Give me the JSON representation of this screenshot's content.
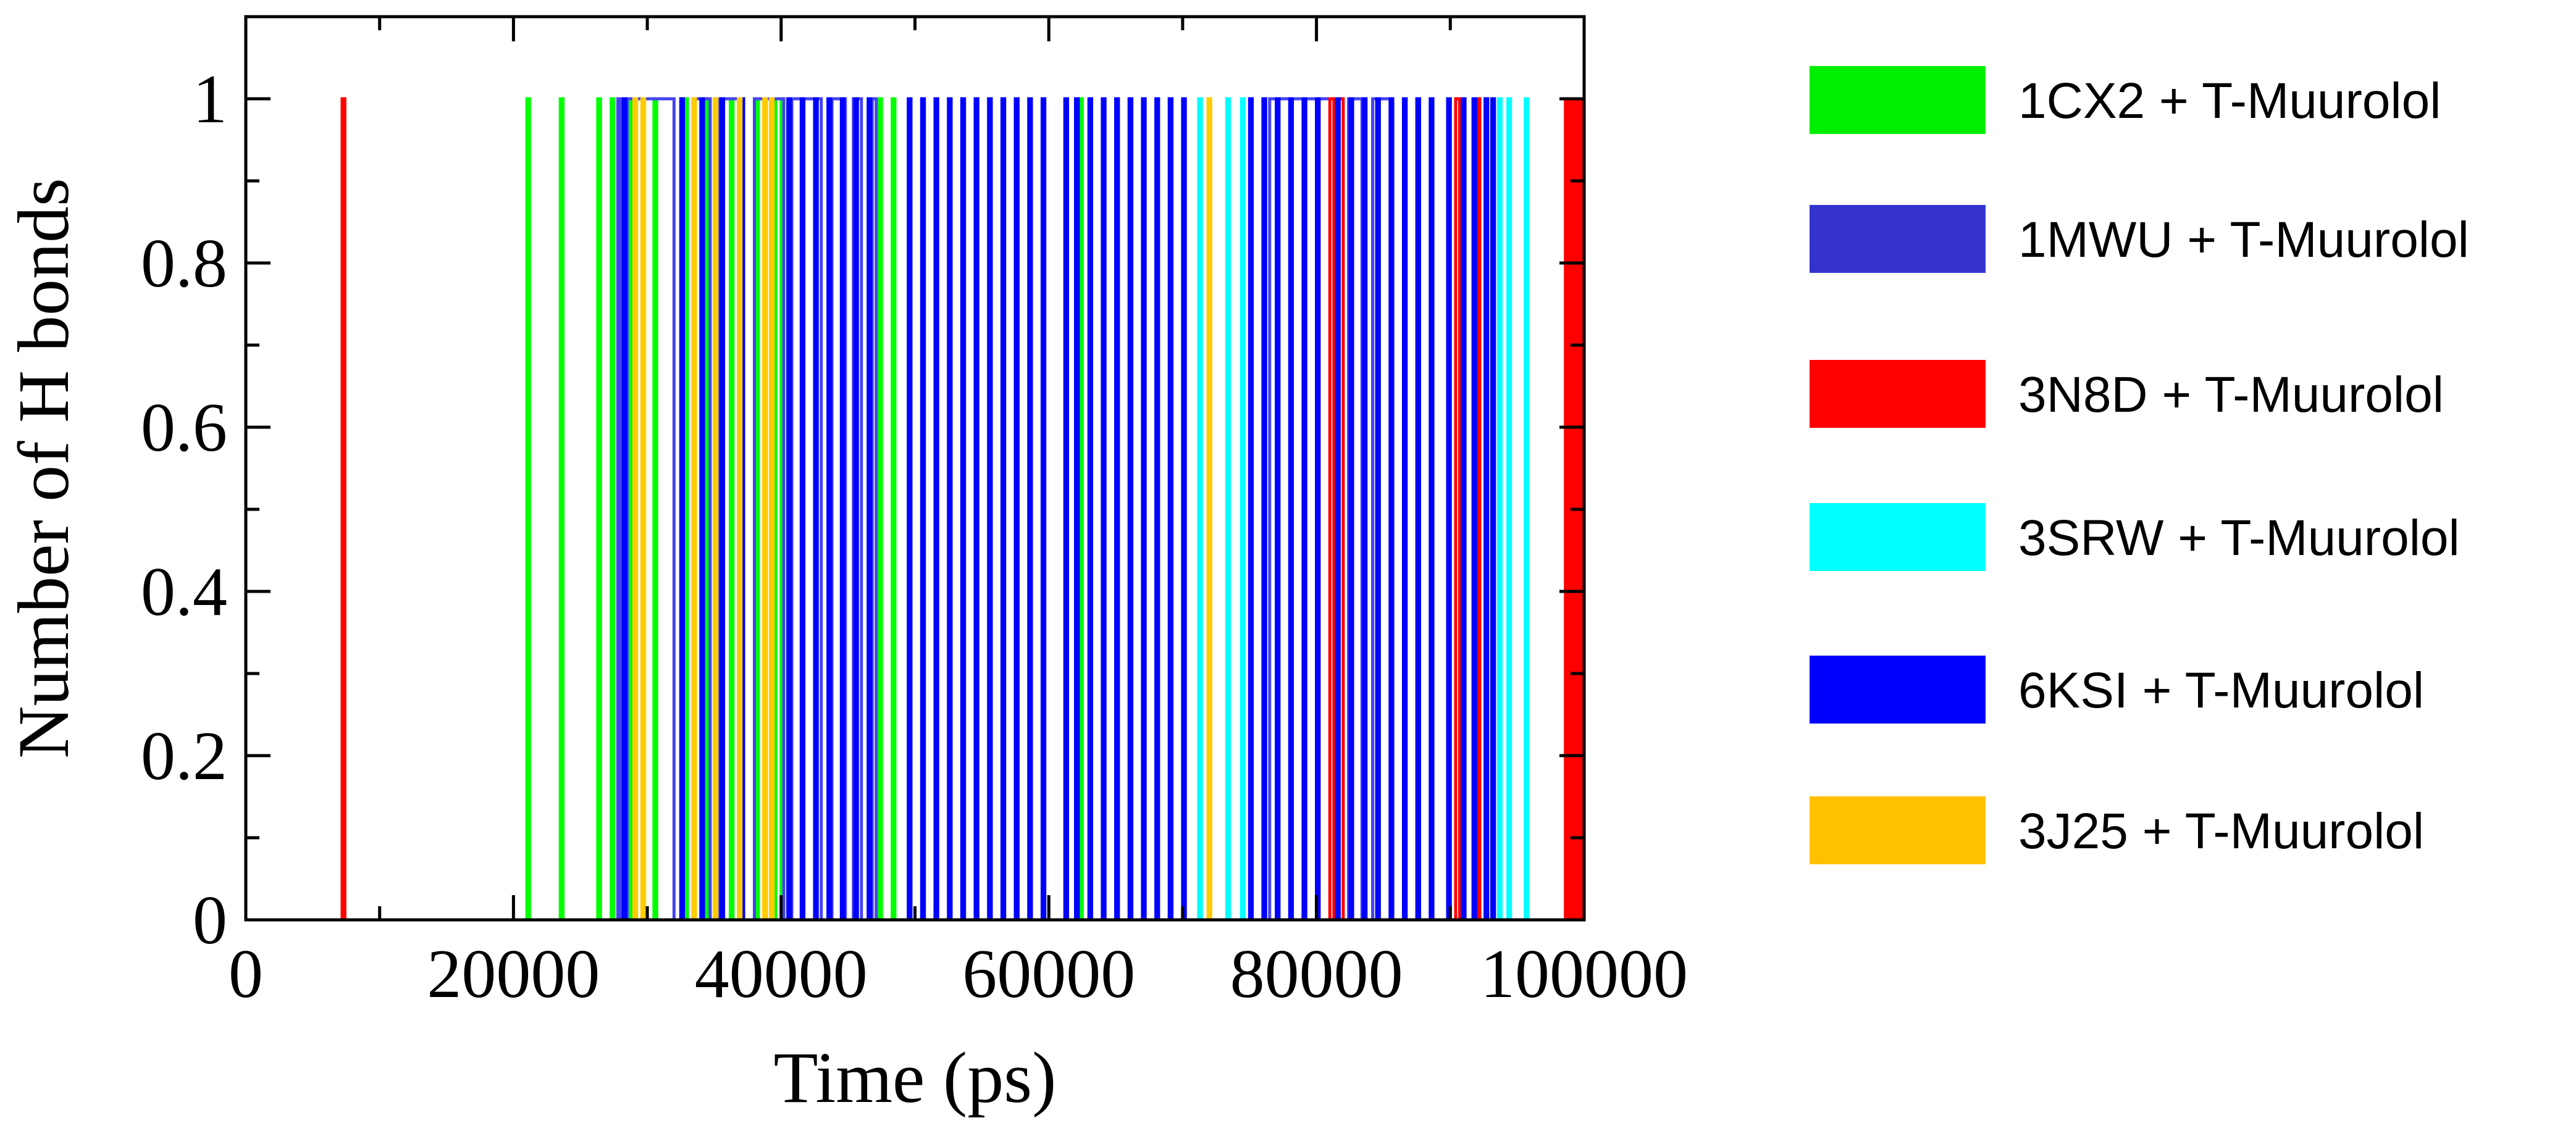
{
  "chart_data": {
    "type": "line",
    "title": "",
    "xlabel": "Time (ps)",
    "ylabel": "Number of H bonds",
    "xlim": [
      0,
      100000
    ],
    "ylim": [
      0,
      1.1
    ],
    "x_ticks": [
      0,
      20000,
      40000,
      60000,
      80000,
      100000
    ],
    "x_tick_labels": [
      "0",
      "20000",
      "40000",
      "60000",
      "80000",
      "100000"
    ],
    "y_ticks": [
      0,
      0.2,
      0.4,
      0.6,
      0.8,
      1
    ],
    "y_tick_labels": [
      "0",
      "0.2",
      "0.4",
      "0.6",
      "0.8",
      "1"
    ],
    "grid": false,
    "legend_position": "right",
    "series": [
      {
        "name": "1CX2 + T-Muurolol",
        "color": "#00ff00",
        "legend_color": "#00ee00",
        "events": [
          [
            21000,
            21200
          ],
          [
            23500,
            23700
          ],
          [
            26300,
            26500
          ],
          [
            27300,
            27500
          ],
          [
            28600,
            28800
          ],
          [
            30500,
            30700
          ],
          [
            32800,
            33000
          ],
          [
            34300,
            34500
          ],
          [
            36200,
            36400
          ],
          [
            38100,
            38300
          ],
          [
            39400,
            39600
          ],
          [
            40000,
            40200
          ],
          [
            47300,
            47500
          ],
          [
            48300,
            48500
          ],
          [
            62300,
            62500
          ]
        ]
      },
      {
        "name": "1MWU + T-Muurolol",
        "color": "#4444ee",
        "legend_color": "#3333cc",
        "events": [
          [
            27800,
            28000
          ],
          [
            28500,
            32000
          ],
          [
            33500,
            34700
          ],
          [
            35300,
            37000
          ],
          [
            38000,
            40200
          ],
          [
            40800,
            43000
          ],
          [
            43800,
            44800
          ],
          [
            45400,
            46000
          ],
          [
            46800,
            47100
          ],
          [
            76500,
            81500
          ],
          [
            82400,
            83400
          ],
          [
            84200,
            85600
          ]
        ]
      },
      {
        "name": "3N8D + T-Muurolol",
        "color": "#ff0000",
        "legend_color": "#ff0000",
        "events": [
          [
            7200,
            7400
          ],
          [
            81000,
            81300
          ],
          [
            81700,
            82000
          ],
          [
            90400,
            90700
          ],
          [
            92000,
            92200
          ],
          [
            98600,
            98800
          ],
          [
            99000,
            99200
          ],
          [
            99400,
            99600
          ],
          [
            99800,
            100000
          ]
        ]
      },
      {
        "name": "3SRW + T-Muurolol",
        "color": "#00ffff",
        "legend_color": "#00ffff",
        "events": [
          [
            71200,
            71400
          ],
          [
            73300,
            73500
          ],
          [
            74400,
            74600
          ],
          [
            93600,
            93800
          ],
          [
            94300,
            94500
          ],
          [
            95600,
            95800
          ]
        ]
      },
      {
        "name": "6KSI + T-Muurolol",
        "color": "#0000ff",
        "legend_color": "#0000ff",
        "events": [
          [
            28200,
            28400
          ],
          [
            32500,
            32700
          ],
          [
            34000,
            34200
          ],
          [
            35500,
            35700
          ],
          [
            37000,
            37200
          ],
          [
            40500,
            40700
          ],
          [
            41500,
            41700
          ],
          [
            42500,
            42700
          ],
          [
            43500,
            43700
          ],
          [
            44500,
            44700
          ],
          [
            45500,
            45700
          ],
          [
            46500,
            46700
          ],
          [
            49500,
            49700
          ],
          [
            50500,
            50700
          ],
          [
            51500,
            51700
          ],
          [
            52500,
            52700
          ],
          [
            53500,
            53700
          ],
          [
            54500,
            54700
          ],
          [
            55500,
            55700
          ],
          [
            56500,
            56700
          ],
          [
            57500,
            57700
          ],
          [
            58500,
            58700
          ],
          [
            59500,
            59700
          ],
          [
            61200,
            61400
          ],
          [
            62000,
            62200
          ],
          [
            63000,
            63200
          ],
          [
            64000,
            64200
          ],
          [
            65000,
            65200
          ],
          [
            66000,
            66200
          ],
          [
            67000,
            67200
          ],
          [
            68000,
            68200
          ],
          [
            69000,
            69200
          ],
          [
            70000,
            70200
          ],
          [
            75000,
            75200
          ],
          [
            76000,
            76200
          ],
          [
            77000,
            77200
          ],
          [
            78000,
            78200
          ],
          [
            79000,
            79200
          ],
          [
            80000,
            80200
          ],
          [
            81500,
            81700
          ],
          [
            82500,
            82700
          ],
          [
            83500,
            83700
          ],
          [
            84500,
            84700
          ],
          [
            85500,
            85700
          ],
          [
            86500,
            86700
          ],
          [
            87500,
            87700
          ],
          [
            88500,
            88700
          ],
          [
            89800,
            90000
          ],
          [
            90900,
            91100
          ],
          [
            91700,
            91900
          ],
          [
            92600,
            92800
          ],
          [
            93100,
            93300
          ]
        ]
      },
      {
        "name": "3J25 + T-Muurolol",
        "color": "#ffcc00",
        "legend_color": "#ffc000",
        "events": [
          [
            29000,
            29200
          ],
          [
            29600,
            29800
          ],
          [
            33400,
            33600
          ],
          [
            35000,
            35200
          ],
          [
            36800,
            37000
          ],
          [
            38700,
            38900
          ],
          [
            39200,
            39400
          ],
          [
            71900,
            72100
          ]
        ]
      }
    ]
  }
}
